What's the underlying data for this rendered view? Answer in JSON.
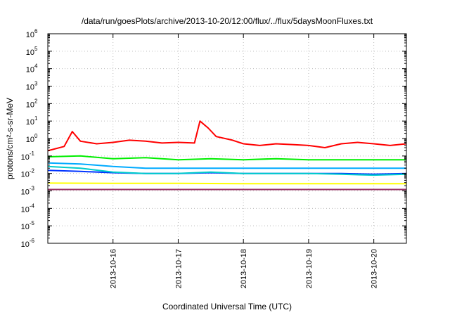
{
  "chart_data": {
    "type": "line",
    "title": "/data/run/goesPlots/archive/2013-10-20/12:00/flux/../flux/5daysMoonFluxes.txt",
    "xlabel": "Coordinated Universal Time (UTC)",
    "ylabel": "protons/cm²-s-sr-MeV",
    "yscale": "log",
    "ylim": [
      1e-06,
      1000000.0
    ],
    "xlim": [
      "2013-10-15T00:00",
      "2013-10-20T12:00"
    ],
    "ytick_exponents": [
      "-6",
      "-5",
      "-4",
      "-3",
      "-2",
      "-1",
      "0",
      "1",
      "2",
      "3",
      "4",
      "5",
      "6"
    ],
    "xticks": [
      "2013-10-16",
      "2013-10-17",
      "2013-10-18",
      "2013-10-19",
      "2013-10-20"
    ],
    "grid": true,
    "series": [
      {
        "color": "#ff0000",
        "x": [
          "2013-10-15T00:00",
          "2013-10-15T06:00",
          "2013-10-15T09:00",
          "2013-10-15T12:00",
          "2013-10-15T18:00",
          "2013-10-16T00:00",
          "2013-10-16T06:00",
          "2013-10-16T12:00",
          "2013-10-16T18:00",
          "2013-10-17T00:00",
          "2013-10-17T06:00",
          "2013-10-17T08:00",
          "2013-10-17T11:00",
          "2013-10-17T14:00",
          "2013-10-17T20:00",
          "2013-10-18T00:00",
          "2013-10-18T06:00",
          "2013-10-18T12:00",
          "2013-10-18T18:00",
          "2013-10-19T00:00",
          "2013-10-19T06:00",
          "2013-10-19T12:00",
          "2013-10-19T18:00",
          "2013-10-20T00:00",
          "2013-10-20T06:00",
          "2013-10-20T12:00"
        ],
        "values": [
          0.2,
          0.35,
          2.5,
          0.7,
          0.5,
          0.6,
          0.8,
          0.7,
          0.55,
          0.6,
          0.55,
          10,
          4,
          1.3,
          0.8,
          0.5,
          0.4,
          0.5,
          0.45,
          0.4,
          0.3,
          0.5,
          0.6,
          0.5,
          0.4,
          0.5
        ]
      },
      {
        "color": "#00ee00",
        "x": [
          "2013-10-15T00:00",
          "2013-10-15T12:00",
          "2013-10-16T00:00",
          "2013-10-16T12:00",
          "2013-10-17T00:00",
          "2013-10-17T12:00",
          "2013-10-18T00:00",
          "2013-10-18T12:00",
          "2013-10-19T00:00",
          "2013-10-19T12:00",
          "2013-10-20T00:00",
          "2013-10-20T12:00"
        ],
        "values": [
          0.09,
          0.1,
          0.07,
          0.08,
          0.06,
          0.07,
          0.06,
          0.07,
          0.06,
          0.06,
          0.06,
          0.06
        ]
      },
      {
        "color": "#00aaff",
        "x": [
          "2013-10-15T00:00",
          "2013-10-15T12:00",
          "2013-10-16T00:00",
          "2013-10-16T12:00",
          "2013-10-17T00:00",
          "2013-10-17T12:00",
          "2013-10-18T00:00",
          "2013-10-18T12:00",
          "2013-10-19T00:00",
          "2013-10-19T12:00",
          "2013-10-20T00:00",
          "2013-10-20T12:00"
        ],
        "values": [
          0.04,
          0.035,
          0.025,
          0.02,
          0.02,
          0.02,
          0.02,
          0.02,
          0.02,
          0.02,
          0.02,
          0.02
        ]
      },
      {
        "color": "#0033ff",
        "x": [
          "2013-10-15T00:00",
          "2013-10-15T12:00",
          "2013-10-16T00:00",
          "2013-10-16T12:00",
          "2013-10-17T00:00",
          "2013-10-17T12:00",
          "2013-10-18T00:00",
          "2013-10-18T12:00",
          "2013-10-19T00:00",
          "2013-10-19T12:00",
          "2013-10-20T00:00",
          "2013-10-20T12:00"
        ],
        "values": [
          0.015,
          0.013,
          0.011,
          0.01,
          0.01,
          0.011,
          0.01,
          0.01,
          0.01,
          0.01,
          0.009,
          0.01
        ]
      },
      {
        "color": "#00cccc",
        "x": [
          "2013-10-15T00:00",
          "2013-10-15T12:00",
          "2013-10-16T00:00",
          "2013-10-16T12:00",
          "2013-10-17T00:00",
          "2013-10-17T12:00",
          "2013-10-18T00:00",
          "2013-10-18T12:00",
          "2013-10-19T00:00",
          "2013-10-19T12:00",
          "2013-10-20T00:00",
          "2013-10-20T12:00"
        ],
        "values": [
          0.025,
          0.02,
          0.012,
          0.01,
          0.01,
          0.012,
          0.01,
          0.01,
          0.01,
          0.009,
          0.008,
          0.009
        ]
      },
      {
        "color": "#ffff00",
        "x": [
          "2013-10-15T00:00",
          "2013-10-16T00:00",
          "2013-10-17T00:00",
          "2013-10-18T00:00",
          "2013-10-19T00:00",
          "2013-10-20T00:00",
          "2013-10-20T12:00"
        ],
        "values": [
          0.0028,
          0.0027,
          0.0027,
          0.0026,
          0.0026,
          0.0026,
          0.0026
        ]
      },
      {
        "color": "#993366",
        "x": [
          "2013-10-15T00:00",
          "2013-10-16T00:00",
          "2013-10-17T00:00",
          "2013-10-18T00:00",
          "2013-10-19T00:00",
          "2013-10-20T00:00",
          "2013-10-20T12:00"
        ],
        "values": [
          0.0012,
          0.0012,
          0.0012,
          0.0012,
          0.0012,
          0.0012,
          0.0012
        ]
      }
    ]
  }
}
